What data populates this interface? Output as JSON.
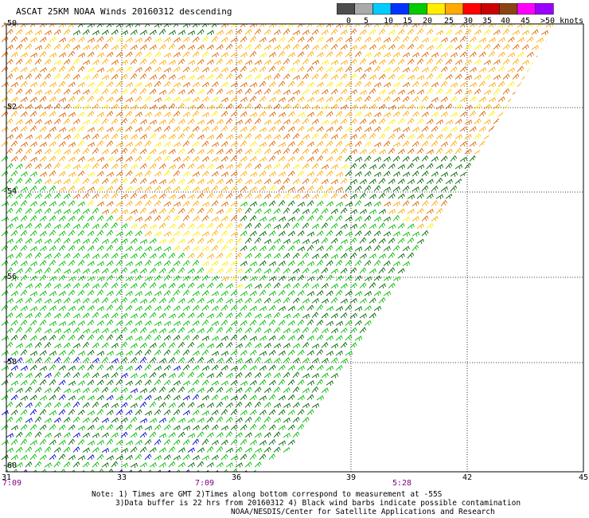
{
  "title": "ASCAT 25KM NOAA Winds 20160312 descending",
  "legend": {
    "values": [
      "0",
      "5",
      "10",
      "15",
      "20",
      "25",
      "30",
      "35",
      "40",
      "45",
      ">50 knots"
    ],
    "colors": [
      "#4d4d4d",
      "#aaaaaa",
      "#00ccff",
      "#0033ff",
      "#00cc00",
      "#ffee00",
      "#ffaa00",
      "#ff0000",
      "#cc0000",
      "#8b4513",
      "#ff00ff",
      "#9900ff"
    ]
  },
  "axes": {
    "y_labels": [
      "-50",
      "-52",
      "-54",
      "-56",
      "-58",
      "-60"
    ],
    "x_labels": [
      "31",
      "33",
      "36",
      "39",
      "42",
      "45"
    ]
  },
  "time_labels": [
    "7:09",
    "7:09",
    "5:28"
  ],
  "notes": [
    "Note: 1) Times are GMT 2)Times along bottom correspond to measurement at -55S",
    "3)Data buffer is 22 hrs from 20160312 4) Black wind barbs indicate possible contamination",
    "NOAA/NESDIS/Center for Satellite Applications and Research"
  ],
  "wind_field": {
    "colors": {
      "green_dark": "#006600",
      "green": "#00bb00",
      "yellow": "#ffee00",
      "orange": "#ffaa00",
      "dark_orange": "#dd6600",
      "blue": "#0000cc"
    }
  }
}
